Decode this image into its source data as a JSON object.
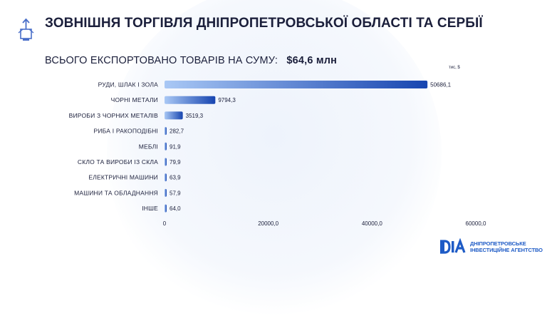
{
  "header": {
    "title": "ЗОВНІШНЯ ТОРГІВЛЯ ДНІПРОПЕТРОВСЬКОЇ ОБЛАСТІ ТА СЕРБІЇ",
    "subtitle_label": "ВСЬОГО ЕКСПОРТОВАНО ТОВАРІВ НА СУМУ:",
    "subtitle_value": "$64,6 млн",
    "logo_icon": "export-box-icon"
  },
  "chart_data": {
    "type": "bar",
    "orientation": "horizontal",
    "title": "",
    "unit_label": "тис, $",
    "categories": [
      "РУДИ, ШЛАК І ЗОЛА",
      "ЧОРНІ МЕТАЛИ",
      "ВИРОБИ З ЧОРНИХ МЕТАЛІВ",
      "РИБА І РАКОПОДІБНІ",
      "МЕБЛІ",
      "СКЛО ТА ВИРОБИ ІЗ СКЛА",
      "ЕЛЕКТРИЧНІ МАШИНИ",
      "МАШИНИ ТА ОБЛАДНАННЯ",
      "ІНШЕ"
    ],
    "values": [
      50686.1,
      9794.3,
      3519.3,
      282.7,
      91.9,
      79.9,
      63.9,
      57.9,
      64.0
    ],
    "value_labels": [
      "50686,1",
      "9794,3",
      "3519,3",
      "282,7",
      "91,9",
      "79,9",
      "63,9",
      "57,9",
      "64,0"
    ],
    "xlim": [
      0,
      60000
    ],
    "xticks": [
      0,
      20000,
      40000,
      60000
    ],
    "xtick_labels": [
      "0",
      "20000,0",
      "40000,0",
      "60000,0"
    ],
    "grid": false,
    "colors": {
      "bar_start": "#a9c8f5",
      "bar_end": "#1745b0"
    }
  },
  "brand": {
    "logo_text": "DIA",
    "line1": "ДНІПРОПЕТРОВСЬКЕ",
    "line2": "ІНВЕСТИЦІЙНЕ АГЕНТСТВО",
    "color": "#1e5bc6"
  }
}
